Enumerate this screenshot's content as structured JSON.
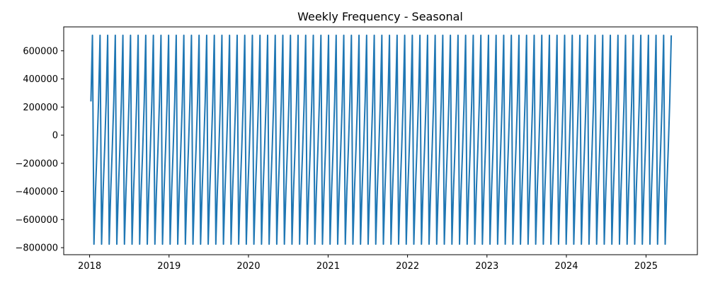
{
  "chart_data": {
    "type": "line",
    "title": "Weekly Frequency - Seasonal",
    "xlabel": "",
    "ylabel": "",
    "x_axis": {
      "type": "date",
      "range": [
        "2017-09-04",
        "2025-08-25"
      ],
      "ticks": [
        {
          "label": "2018",
          "date": "2018-01-01"
        },
        {
          "label": "2019",
          "date": "2019-01-01"
        },
        {
          "label": "2020",
          "date": "2020-01-01"
        },
        {
          "label": "2021",
          "date": "2021-01-01"
        },
        {
          "label": "2022",
          "date": "2022-01-01"
        },
        {
          "label": "2023",
          "date": "2023-01-01"
        },
        {
          "label": "2024",
          "date": "2024-01-01"
        },
        {
          "label": "2025",
          "date": "2025-01-01"
        }
      ]
    },
    "y_axis": {
      "range": [
        -850000,
        770000
      ],
      "ticks": [
        {
          "label": "600000",
          "value": 600000
        },
        {
          "label": "400000",
          "value": 400000
        },
        {
          "label": "200000",
          "value": 200000
        },
        {
          "label": "0",
          "value": 0
        },
        {
          "label": "−200000",
          "value": -200000
        },
        {
          "label": "−400000",
          "value": -400000
        },
        {
          "label": "−600000",
          "value": -600000
        },
        {
          "label": "−800000",
          "value": -800000
        }
      ]
    },
    "grid": false,
    "legend": "none",
    "series": [
      {
        "color": "#1f77b4",
        "start_date": "2018-01-07",
        "end_date": "2025-04-27",
        "period_weeks": 5,
        "seasonal_pattern": [
          240000,
          710000,
          -775000,
          -400000,
          -100000
        ]
      }
    ]
  }
}
